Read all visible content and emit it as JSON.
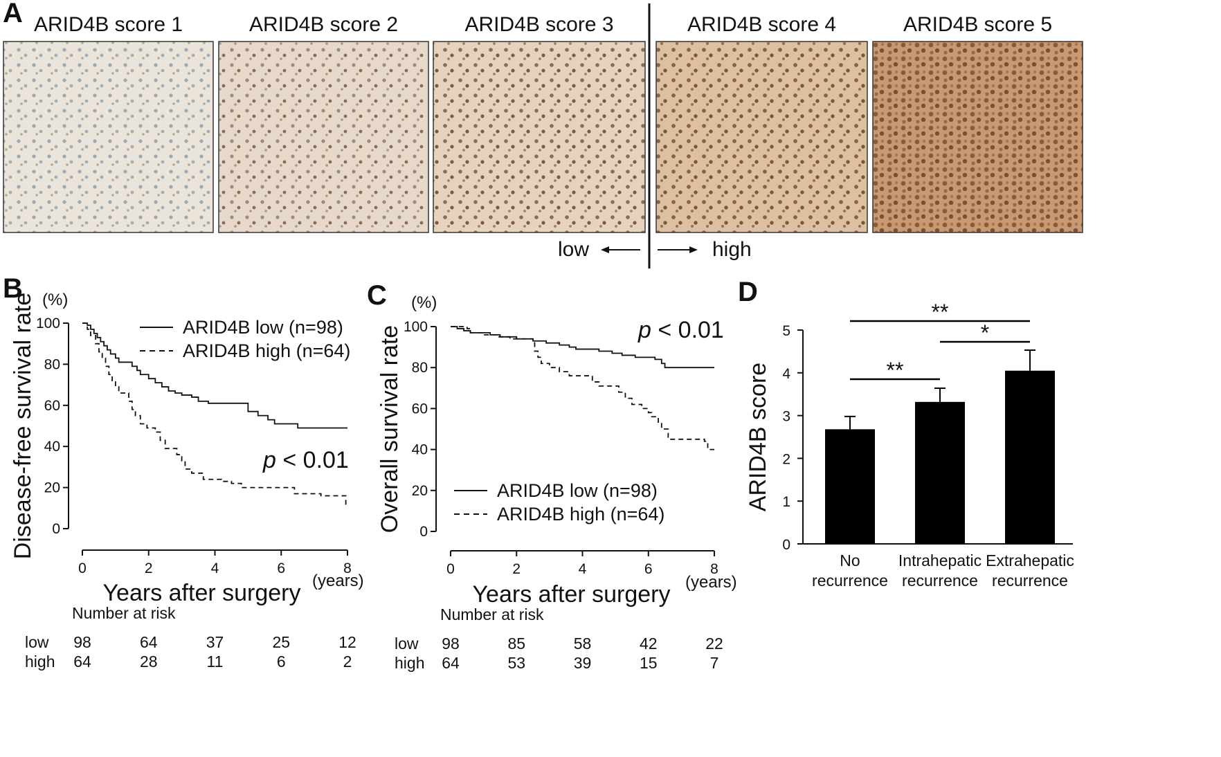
{
  "panels": {
    "A": "A",
    "B": "B",
    "C": "C",
    "D": "D"
  },
  "colors": {
    "tissue_low": "#e9e1d6",
    "tissue_mid": "#dcc5ab",
    "tissue_high": "#b98358",
    "ink": "#111111"
  },
  "ihc": {
    "images": [
      {
        "title": "ARID4B score 1",
        "level": 1
      },
      {
        "title": "ARID4B score 2",
        "level": 2
      },
      {
        "title": "ARID4B score 3",
        "level": 3
      },
      {
        "title": "ARID4B score 4",
        "level": 4
      },
      {
        "title": "ARID4B score 5",
        "level": 5
      }
    ],
    "low_label": "low",
    "high_label": "high"
  },
  "chart_data": [
    {
      "panel": "B",
      "type": "line",
      "ylabel": "Disease-free survival rate",
      "yunit": "(%)",
      "xlabel": "Years after surgery",
      "xunit": "(years)",
      "xlim": [
        0,
        8
      ],
      "ylim": [
        0,
        100
      ],
      "xticks": [
        0,
        2,
        4,
        6,
        8
      ],
      "yticks": [
        0,
        20,
        40,
        60,
        80,
        100
      ],
      "pvalue": {
        "p": "p",
        "rest": " < 0.01"
      },
      "series": [
        {
          "name": "ARID4B low (n=98)",
          "style": "solid",
          "points": [
            [
              0,
              100
            ],
            [
              0.15,
              99
            ],
            [
              0.25,
              97
            ],
            [
              0.35,
              95
            ],
            [
              0.45,
              93
            ],
            [
              0.55,
              91
            ],
            [
              0.65,
              89
            ],
            [
              0.75,
              87
            ],
            [
              0.85,
              85
            ],
            [
              1.0,
              83
            ],
            [
              1.1,
              81
            ],
            [
              1.5,
              79
            ],
            [
              1.65,
              77
            ],
            [
              1.75,
              75
            ],
            [
              2.0,
              73
            ],
            [
              2.2,
              71
            ],
            [
              2.4,
              69
            ],
            [
              2.6,
              67
            ],
            [
              2.8,
              66
            ],
            [
              3.0,
              65
            ],
            [
              3.3,
              64
            ],
            [
              3.5,
              62
            ],
            [
              3.8,
              61
            ],
            [
              4.9,
              61
            ],
            [
              5.0,
              57
            ],
            [
              5.3,
              55
            ],
            [
              5.6,
              53
            ],
            [
              5.8,
              51
            ],
            [
              6.5,
              49
            ],
            [
              8.0,
              49
            ]
          ]
        },
        {
          "name": "ARID4B high (n=64)",
          "style": "dashed",
          "points": [
            [
              0,
              100
            ],
            [
              0.15,
              97
            ],
            [
              0.25,
              94
            ],
            [
              0.4,
              90
            ],
            [
              0.5,
              86
            ],
            [
              0.6,
              83
            ],
            [
              0.7,
              79
            ],
            [
              0.8,
              75
            ],
            [
              0.9,
              72
            ],
            [
              1.0,
              69
            ],
            [
              1.1,
              66
            ],
            [
              1.4,
              62
            ],
            [
              1.5,
              58
            ],
            [
              1.6,
              55
            ],
            [
              1.75,
              51
            ],
            [
              1.95,
              49
            ],
            [
              2.2,
              47
            ],
            [
              2.35,
              43
            ],
            [
              2.5,
              39
            ],
            [
              2.85,
              36
            ],
            [
              3.0,
              33
            ],
            [
              3.1,
              29
            ],
            [
              3.3,
              27
            ],
            [
              3.65,
              24
            ],
            [
              4.2,
              23
            ],
            [
              4.5,
              22
            ],
            [
              4.8,
              20
            ],
            [
              6.4,
              17
            ],
            [
              7.2,
              16
            ],
            [
              7.9,
              16
            ],
            [
              7.95,
              11
            ],
            [
              8.0,
              11
            ]
          ]
        }
      ],
      "risk": {
        "title": "Number at risk",
        "rows": [
          {
            "label": "low",
            "values": [
              "98",
              "64",
              "37",
              "25",
              "12"
            ]
          },
          {
            "label": "high",
            "values": [
              "64",
              "28",
              "11",
              "6",
              "2"
            ]
          }
        ]
      }
    },
    {
      "panel": "C",
      "type": "line",
      "ylabel": "Overall survival rate",
      "yunit": "(%)",
      "xlabel": "Years after surgery",
      "xunit": "(years)",
      "xlim": [
        0,
        8
      ],
      "ylim": [
        0,
        100
      ],
      "xticks": [
        0,
        2,
        4,
        6,
        8
      ],
      "yticks": [
        0,
        20,
        40,
        60,
        80,
        100
      ],
      "pvalue": {
        "p": "p",
        "rest": " < 0.01"
      },
      "series": [
        {
          "name": "ARID4B low (n=98)",
          "style": "solid",
          "points": [
            [
              0,
              100
            ],
            [
              0.2,
              99
            ],
            [
              0.4,
              98
            ],
            [
              0.6,
              97
            ],
            [
              1.2,
              96
            ],
            [
              1.5,
              95
            ],
            [
              2.0,
              94
            ],
            [
              2.5,
              93
            ],
            [
              2.9,
              92
            ],
            [
              3.3,
              91
            ],
            [
              3.6,
              90
            ],
            [
              3.8,
              89
            ],
            [
              4.5,
              88
            ],
            [
              4.9,
              87
            ],
            [
              5.2,
              86
            ],
            [
              5.6,
              85
            ],
            [
              6.2,
              84
            ],
            [
              6.4,
              82
            ],
            [
              6.5,
              80
            ],
            [
              8.0,
              80
            ]
          ]
        },
        {
          "name": "ARID4B high (n=64)",
          "style": "dashed",
          "points": [
            [
              0,
              100
            ],
            [
              0.5,
              99
            ],
            [
              0.6,
              97
            ],
            [
              1.0,
              96
            ],
            [
              1.4,
              95
            ],
            [
              1.8,
              94
            ],
            [
              2.5,
              93
            ],
            [
              2.55,
              88
            ],
            [
              2.65,
              85
            ],
            [
              2.75,
              82
            ],
            [
              3.0,
              80
            ],
            [
              3.3,
              78
            ],
            [
              3.6,
              76
            ],
            [
              4.3,
              73
            ],
            [
              4.5,
              71
            ],
            [
              5.0,
              71
            ],
            [
              5.1,
              68
            ],
            [
              5.3,
              65
            ],
            [
              5.5,
              62
            ],
            [
              5.8,
              60
            ],
            [
              6.0,
              58
            ],
            [
              6.1,
              56
            ],
            [
              6.3,
              53
            ],
            [
              6.4,
              50
            ],
            [
              6.6,
              45
            ],
            [
              7.7,
              44
            ],
            [
              7.8,
              40
            ],
            [
              8.0,
              40
            ]
          ]
        }
      ],
      "risk": {
        "title": "Number at risk",
        "rows": [
          {
            "label": "low",
            "values": [
              "98",
              "85",
              "58",
              "42",
              "22"
            ]
          },
          {
            "label": "high",
            "values": [
              "64",
              "53",
              "39",
              "15",
              "7"
            ]
          }
        ]
      }
    },
    {
      "panel": "D",
      "type": "bar",
      "ylabel": "ARID4B score",
      "ylim": [
        0,
        5
      ],
      "yticks": [
        0,
        1,
        2,
        3,
        4,
        5
      ],
      "categories": [
        [
          "No",
          "recurrence"
        ],
        [
          "Intrahepatic",
          "recurrence"
        ],
        [
          "Extrahepatic",
          "recurrence"
        ]
      ],
      "values": [
        2.68,
        3.32,
        4.05
      ],
      "errors": [
        0.3,
        0.32,
        0.48
      ],
      "significance": [
        {
          "from": 0,
          "to": 1,
          "label": "**"
        },
        {
          "from": 1,
          "to": 2,
          "label": "*"
        },
        {
          "from": 0,
          "to": 2,
          "label": "**"
        }
      ]
    }
  ]
}
